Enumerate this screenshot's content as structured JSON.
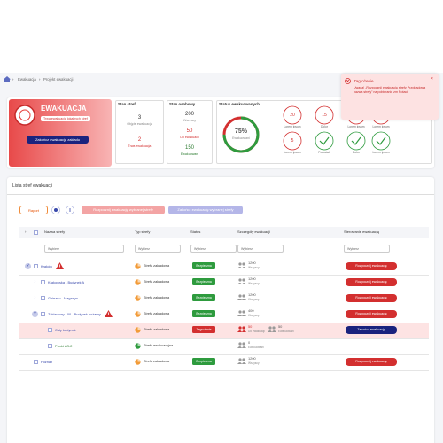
{
  "breadcrumb": [
    "Ewakuacja",
    "Projekt ewakuacji"
  ],
  "toast": {
    "title": "Zagrożenie",
    "text": "Uwaga! „Rozpocznij ewakuację strefy Przykładowa nazwa strefy” na pobieranie zm Rotaci"
  },
  "status_panel": {
    "badge": "EWAKUACJA",
    "alert": "Trwa ewakuacja lokalnych stref",
    "button": "Zakończ ewakuację zakładu"
  },
  "zones": {
    "title": "Stan stref",
    "items": [
      {
        "value": 3,
        "label": "Objęte ewakuacją"
      },
      {
        "value": 2,
        "label": "Trwa ewakuacja"
      }
    ]
  },
  "people": {
    "title": "Stan osobowy",
    "items": [
      {
        "value": 200,
        "label": "Wszyscy"
      },
      {
        "value": 50,
        "label": "Do ewakuacji"
      },
      {
        "value": 150,
        "label": "Ewakuowani"
      }
    ]
  },
  "evacuated": {
    "title": "Status ewakuowanych",
    "percent": {
      "value": 75,
      "label": "75%"
    },
    "percent_label": "Ewakuowani",
    "circles": [
      {
        "value": 20,
        "label": "Lorem ipsum"
      },
      {
        "value": 15,
        "label": "Dolor"
      },
      {
        "value": 5,
        "label": "Lorem ipsum"
      },
      {
        "value": 5,
        "label": "Lorem ipsum"
      },
      {
        "value": 5,
        "label": "Lorem ipsum"
      },
      {
        "label": "Pozostali",
        "done": true
      },
      {
        "label": "Dolor",
        "done": true
      },
      {
        "label": "Lorem ipsum",
        "done": true
      }
    ]
  },
  "list": {
    "title": "Lista stref ewakuacji",
    "report": "Raport",
    "start": "Rozpocznij ewakuację wybranej strefy",
    "stop": "Zakończ ewakuację wybranej strefy"
  },
  "table": {
    "columns": [
      "Nazwa strefy",
      "Typ strefy",
      "Status",
      "Szczegóły ewakuacji",
      "Sterowanie ewakuacją"
    ],
    "filter": "Wybierz",
    "rows": [
      {
        "name": "Kraków",
        "level": 0,
        "expand": "open",
        "warning": true,
        "type": "Strefa zakładowa",
        "status": "Bezpieczna",
        "status_kind": "safe",
        "details": [
          {
            "value": 1200,
            "label": "Wszyscy"
          }
        ],
        "action": "Rozpocznij ewakuację",
        "action_kind": "start"
      },
      {
        "name": "Krakowska - Budynek A",
        "level": 1,
        "expand": "closed",
        "type": "Strefa zakładowa",
        "status": "Bezpieczna",
        "status_kind": "safe",
        "details": [
          {
            "value": 1200,
            "label": "Wszyscy"
          }
        ],
        "action": "Rozpocznij ewakuację",
        "action_kind": "start"
      },
      {
        "name": "Gniezno - Magazyn",
        "level": 1,
        "expand": "closed",
        "type": "Strefa zakładowa",
        "status": "Bezpieczna",
        "status_kind": "safe",
        "details": [
          {
            "value": 1200,
            "label": "Wszyscy"
          }
        ],
        "action": "Rozpocznij ewakuację",
        "action_kind": "start"
      },
      {
        "name": "Zakładowy 100 - Budynek pożarny",
        "level": 1,
        "expand": "open",
        "warning": true,
        "type": "Strefa zakładowa",
        "status": "Bezpieczna",
        "status_kind": "safe",
        "details": [
          {
            "value": 400,
            "label": "Wszyscy"
          }
        ],
        "action": "Rozpocznij ewakuację",
        "action_kind": "start"
      },
      {
        "name": "Cały budynek",
        "level": 2,
        "highlight": true,
        "type": "Strefa zakładowa",
        "status": "Zagrożenie",
        "status_kind": "danger",
        "details": [
          {
            "value": 50,
            "label": "Do ewakuacji"
          },
          {
            "value": 50,
            "label": "Ewakuowani"
          }
        ],
        "action": "Zakończ ewakuację",
        "action_kind": "stop"
      },
      {
        "name": "Punkt AS-2",
        "level": 2,
        "green": true,
        "type": "Strefa ewakuacyjna",
        "details": [
          {
            "value": 0,
            "label": "Ewakuowani"
          }
        ]
      },
      {
        "name": "Poznań",
        "level": 0,
        "type": "Strefa zakładowa",
        "status": "Bezpieczna",
        "status_kind": "safe",
        "details": [
          {
            "value": 1200,
            "label": "Wszyscy"
          }
        ],
        "action": "Rozpocznij ewakuację",
        "action_kind": "start"
      }
    ]
  }
}
